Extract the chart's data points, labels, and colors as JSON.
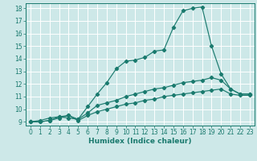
{
  "title": "",
  "xlabel": "Humidex (Indice chaleur)",
  "background_color": "#cde8e8",
  "grid_color": "#b0d4d4",
  "line_color": "#1a7a6e",
  "xlim": [
    -0.5,
    23.5
  ],
  "ylim": [
    8.7,
    18.4
  ],
  "xticks": [
    0,
    1,
    2,
    3,
    4,
    5,
    6,
    7,
    8,
    9,
    10,
    11,
    12,
    13,
    14,
    15,
    16,
    17,
    18,
    19,
    20,
    21,
    22,
    23
  ],
  "yticks": [
    9,
    10,
    11,
    12,
    13,
    14,
    15,
    16,
    17,
    18
  ],
  "curves": [
    {
      "x": [
        0,
        1,
        2,
        3,
        4,
        5,
        6,
        7,
        8,
        9,
        10,
        11,
        12,
        13,
        14,
        15,
        16,
        17,
        18,
        19,
        20,
        21,
        22,
        23
      ],
      "y": [
        9,
        9.1,
        9.3,
        9.4,
        9.3,
        9.2,
        10.2,
        11.2,
        12.1,
        13.2,
        13.8,
        13.9,
        14.1,
        14.6,
        14.7,
        16.5,
        17.8,
        18.0,
        18.1,
        15.0,
        12.8,
        11.6,
        11.2,
        11.2
      ]
    },
    {
      "x": [
        0,
        1,
        2,
        3,
        4,
        5,
        6,
        7,
        8,
        9,
        10,
        11,
        12,
        13,
        14,
        15,
        16,
        17,
        18,
        19,
        20,
        21,
        22,
        23
      ],
      "y": [
        9,
        9.0,
        9.1,
        9.4,
        9.5,
        9.2,
        9.7,
        10.3,
        10.5,
        10.7,
        11.0,
        11.2,
        11.4,
        11.6,
        11.7,
        11.9,
        12.1,
        12.2,
        12.3,
        12.5,
        12.3,
        11.6,
        11.2,
        11.2
      ]
    },
    {
      "x": [
        0,
        1,
        2,
        3,
        4,
        5,
        6,
        7,
        8,
        9,
        10,
        11,
        12,
        13,
        14,
        15,
        16,
        17,
        18,
        19,
        20,
        21,
        22,
        23
      ],
      "y": [
        9,
        9.0,
        9.1,
        9.3,
        9.5,
        9.1,
        9.5,
        9.8,
        10.0,
        10.2,
        10.4,
        10.5,
        10.7,
        10.8,
        11.0,
        11.1,
        11.2,
        11.3,
        11.4,
        11.5,
        11.6,
        11.2,
        11.1,
        11.1
      ]
    }
  ],
  "xlabel_fontsize": 6.5,
  "tick_fontsize": 5.5
}
